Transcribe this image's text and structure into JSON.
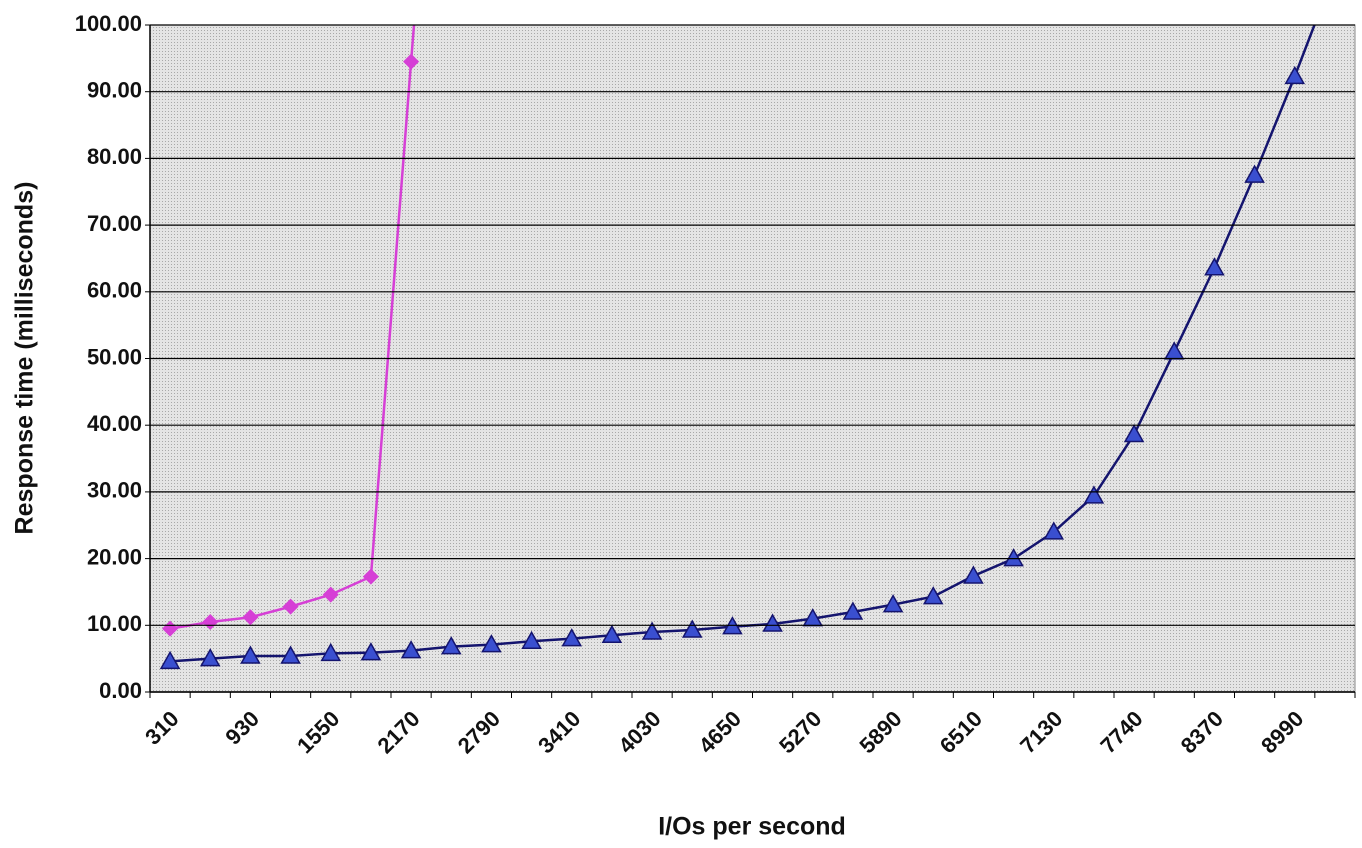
{
  "chart_data": {
    "type": "line",
    "x_label": "I/Os per second",
    "y_label": "Response time (milliseconds)",
    "categories": [
      "310",
      null,
      "930",
      null,
      "1550",
      null,
      "2170",
      null,
      "2790",
      null,
      "3410",
      null,
      "4030",
      null,
      "4650",
      null,
      "5270",
      null,
      "5890",
      null,
      "6510",
      null,
      "7130",
      null,
      "7740",
      null,
      "8370",
      null,
      "8990",
      null
    ],
    "series": [
      {
        "color": "#d63fd6",
        "marker": "diamond",
        "marker_color": "#d63fd6",
        "values": [
          9.5,
          10.5,
          11.2,
          12.8,
          14.6,
          17.3,
          94.5,
          170,
          null,
          null,
          null,
          null,
          null,
          null,
          null,
          null,
          null,
          null,
          null,
          null,
          null,
          null,
          null,
          null,
          null,
          null,
          null,
          null,
          null,
          null
        ]
      },
      {
        "color": "#14146e",
        "marker": "triangle",
        "marker_color": "#3a4fd0",
        "values": [
          4.6,
          5.0,
          5.4,
          5.4,
          5.8,
          5.9,
          6.2,
          6.8,
          7.1,
          7.6,
          8.0,
          8.5,
          9.0,
          9.3,
          9.8,
          10.2,
          11.0,
          12.0,
          13.1,
          14.3,
          17.4,
          20.0,
          24.0,
          29.4,
          38.6,
          51.0,
          63.6,
          77.5,
          92.3,
          108
        ]
      }
    ],
    "ylim": [
      0,
      100
    ],
    "yticks": [
      {
        "value": 0,
        "label": "0.00"
      },
      {
        "value": 10,
        "label": "10.00"
      },
      {
        "value": 20,
        "label": "20.00"
      },
      {
        "value": 30,
        "label": "30.00"
      },
      {
        "value": 40,
        "label": "40.00"
      },
      {
        "value": 50,
        "label": "50.00"
      },
      {
        "value": 60,
        "label": "60.00"
      },
      {
        "value": 70,
        "label": "70.00"
      },
      {
        "value": 80,
        "label": "80.00"
      },
      {
        "value": 90,
        "label": "90.00"
      },
      {
        "value": 100,
        "label": "100.00"
      }
    ],
    "grid": true
  }
}
